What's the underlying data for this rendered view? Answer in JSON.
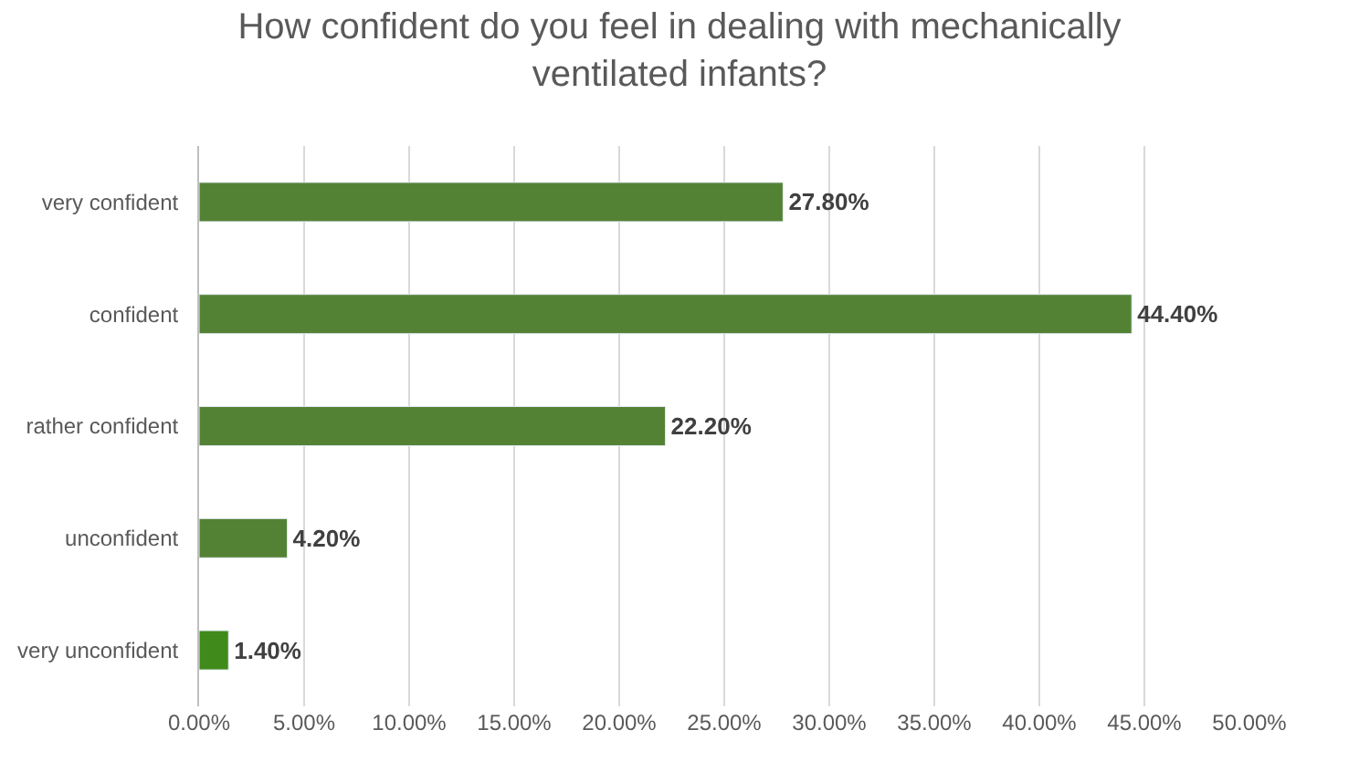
{
  "chart_data": {
    "type": "bar",
    "orientation": "horizontal",
    "title": "How confident do you feel in dealing with mechanically ventilated infants?",
    "categories": [
      "very confident",
      "confident",
      "rather confident",
      "unconfident",
      "very unconfident"
    ],
    "values": [
      27.8,
      44.4,
      22.2,
      4.2,
      1.4
    ],
    "value_labels": [
      "27.80%",
      "44.40%",
      "22.20%",
      "4.20%",
      "1.40%"
    ],
    "colors": [
      "#548235",
      "#548235",
      "#548235",
      "#548235",
      "#3f8a1a"
    ],
    "xlim": [
      0,
      50
    ],
    "xticks": [
      {
        "value": 0,
        "label": "0.00%"
      },
      {
        "value": 5,
        "label": "5.00%"
      },
      {
        "value": 10,
        "label": "10.00%"
      },
      {
        "value": 15,
        "label": "15.00%"
      },
      {
        "value": 20,
        "label": "20.00%"
      },
      {
        "value": 25,
        "label": "25.00%"
      },
      {
        "value": 30,
        "label": "30.00%"
      },
      {
        "value": 35,
        "label": "35.00%"
      },
      {
        "value": 40,
        "label": "40.00%"
      },
      {
        "value": 45,
        "label": "45.00%"
      },
      {
        "value": 50,
        "label": "50.00%"
      }
    ],
    "grid": "x"
  }
}
